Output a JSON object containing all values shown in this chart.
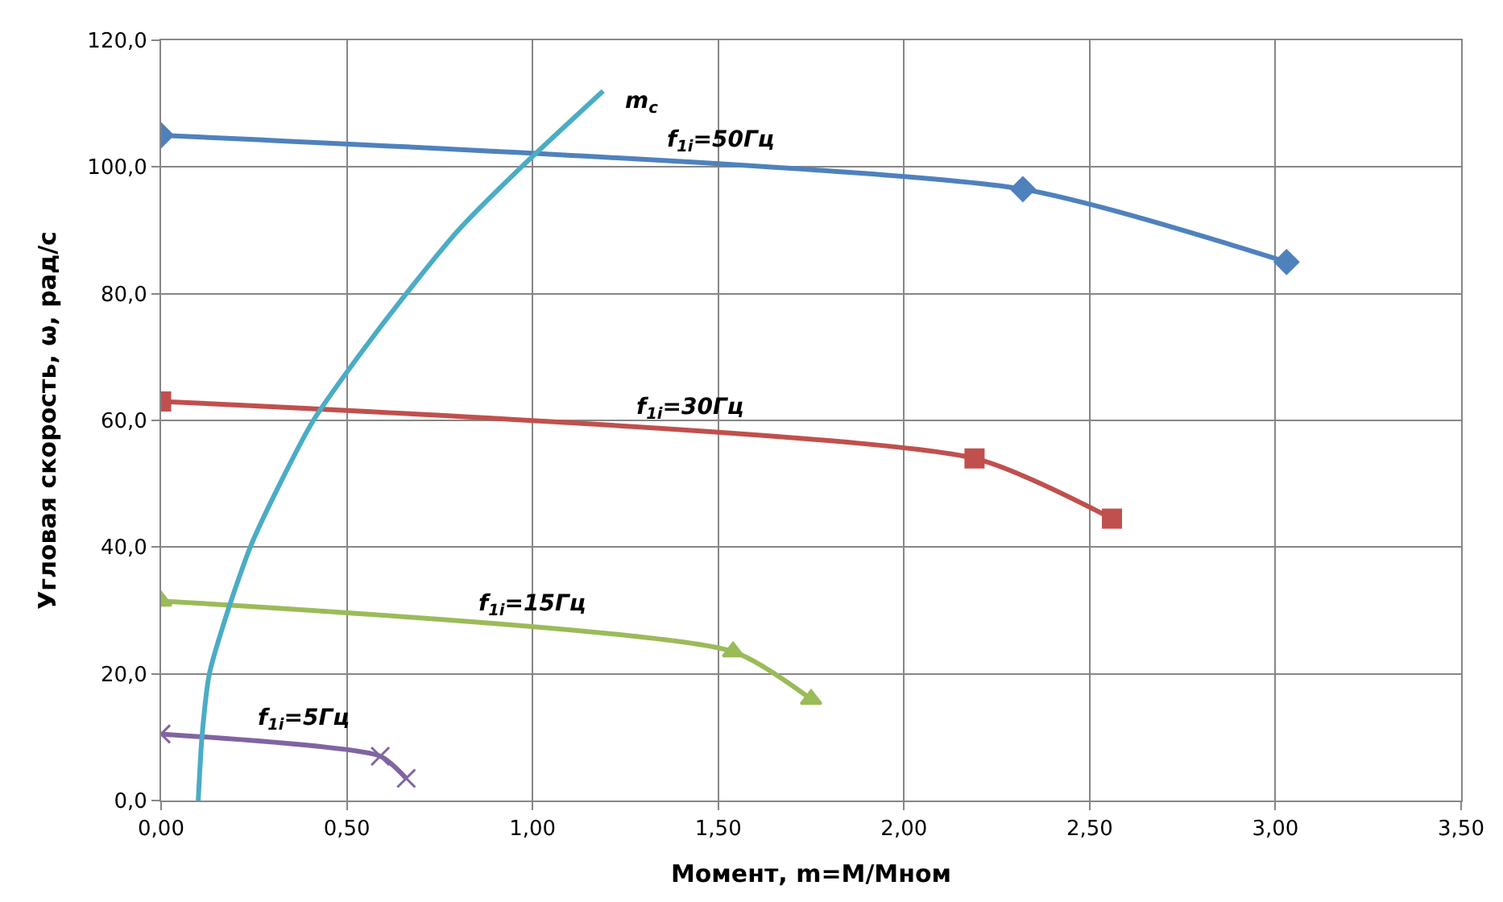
{
  "chart_data": {
    "type": "line",
    "xlabel": "Момент, m=M/Mном",
    "ylabel": "Угловая скорость, ω, рад/с",
    "xlim": [
      0,
      3.5
    ],
    "ylim": [
      0,
      120
    ],
    "xticks": [
      {
        "value": 0,
        "label": "0,00"
      },
      {
        "value": 0.5,
        "label": "0,50"
      },
      {
        "value": 1,
        "label": "1,00"
      },
      {
        "value": 1.5,
        "label": "1,50"
      },
      {
        "value": 2,
        "label": "2,00"
      },
      {
        "value": 2.5,
        "label": "2,50"
      },
      {
        "value": 3,
        "label": "3,00"
      },
      {
        "value": 3.5,
        "label": "3,50"
      }
    ],
    "yticks": [
      {
        "value": 0,
        "label": "0,0"
      },
      {
        "value": 20,
        "label": "20,0"
      },
      {
        "value": 40,
        "label": "40,0"
      },
      {
        "value": 60,
        "label": "60,0"
      },
      {
        "value": 80,
        "label": "80,0"
      },
      {
        "value": 100,
        "label": "100,0"
      },
      {
        "value": 120,
        "label": "120,0"
      }
    ],
    "grid": true,
    "legend": false,
    "series": [
      {
        "name": "f$_{1i}$=50Гц",
        "color": "#4f81bd",
        "marker": "diamond",
        "x": [
          0,
          2.32,
          3.03
        ],
        "values": [
          105,
          96.5,
          85
        ]
      },
      {
        "name": "f$_{1i}$=30Гц",
        "color": "#c0504d",
        "marker": "square",
        "x": [
          0,
          2.19,
          2.56
        ],
        "values": [
          63,
          54,
          44.5
        ]
      },
      {
        "name": "f$_{1i}$=15Гц",
        "color": "#9bbb59",
        "marker": "triangle",
        "x": [
          0,
          1.54,
          1.75
        ],
        "values": [
          31.5,
          23.5,
          16
        ]
      },
      {
        "name": "f$_{1i}$=5Гц",
        "color": "#8064a2",
        "marker": "cross",
        "x": [
          0,
          0.59,
          0.66
        ],
        "values": [
          10.5,
          7,
          3.5
        ]
      },
      {
        "name": "m$_{c}$",
        "color": "#4bacc6",
        "marker": "none",
        "x": [
          0.1,
          0.11,
          0.13,
          0.18,
          0.24,
          0.32,
          0.41,
          0.53,
          0.66,
          0.8,
          0.97,
          1.19
        ],
        "values": [
          0,
          10,
          20,
          30,
          40,
          50,
          60,
          70,
          80,
          90,
          100,
          112
        ]
      }
    ]
  }
}
